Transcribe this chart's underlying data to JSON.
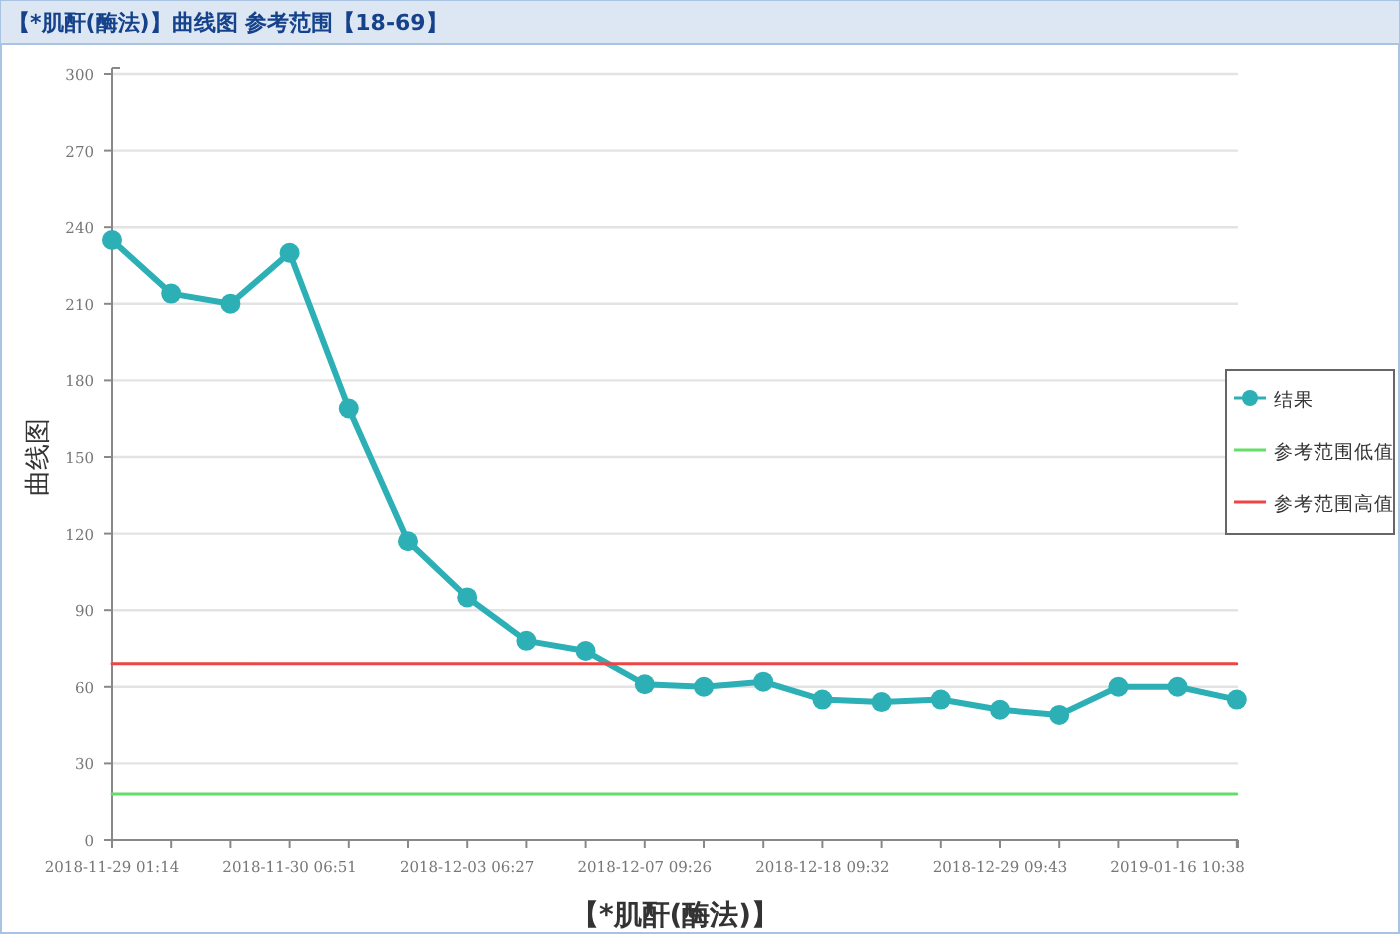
{
  "chart_data": {
    "type": "line",
    "title": "【*肌酐(酶法)】曲线图 参考范围【18-69】",
    "xlabel": "【*肌酐(酶法)】",
    "ylabel": "曲线图",
    "categories": [
      "2018-11-29 01:14",
      null,
      null,
      "2018-11-30 06:51",
      null,
      null,
      "2018-12-03 06:27",
      null,
      null,
      "2018-12-07 09:26",
      null,
      null,
      "2018-12-18 09:32",
      null,
      null,
      "2018-12-29 09:43",
      null,
      null,
      "2019-01-16 10:38",
      null
    ],
    "series": [
      {
        "name": "结果",
        "color": "#2cb0b6",
        "values": [
          235,
          214,
          210,
          230,
          169,
          117,
          95,
          78,
          74,
          61,
          60,
          62,
          55,
          54,
          55,
          51,
          49,
          60,
          60,
          55
        ]
      },
      {
        "name": "参考范围低值",
        "color": "#66dd66",
        "marker": "none",
        "values": [
          18,
          18,
          18,
          18,
          18,
          18,
          18,
          18,
          18,
          18,
          18,
          18,
          18,
          18,
          18,
          18,
          18,
          18,
          18,
          18
        ]
      },
      {
        "name": "参考范围高值",
        "color": "#ee4444",
        "marker": "none",
        "values": [
          69,
          69,
          69,
          69,
          69,
          69,
          69,
          69,
          69,
          69,
          69,
          69,
          69,
          69,
          69,
          69,
          69,
          69,
          69,
          69
        ]
      }
    ],
    "ylim": [
      0,
      300
    ],
    "yticks": [
      0,
      30,
      60,
      90,
      120,
      150,
      180,
      210,
      240,
      270,
      300
    ],
    "grid": "y",
    "legend": "right",
    "marker": "circle",
    "line_style": "solid"
  }
}
